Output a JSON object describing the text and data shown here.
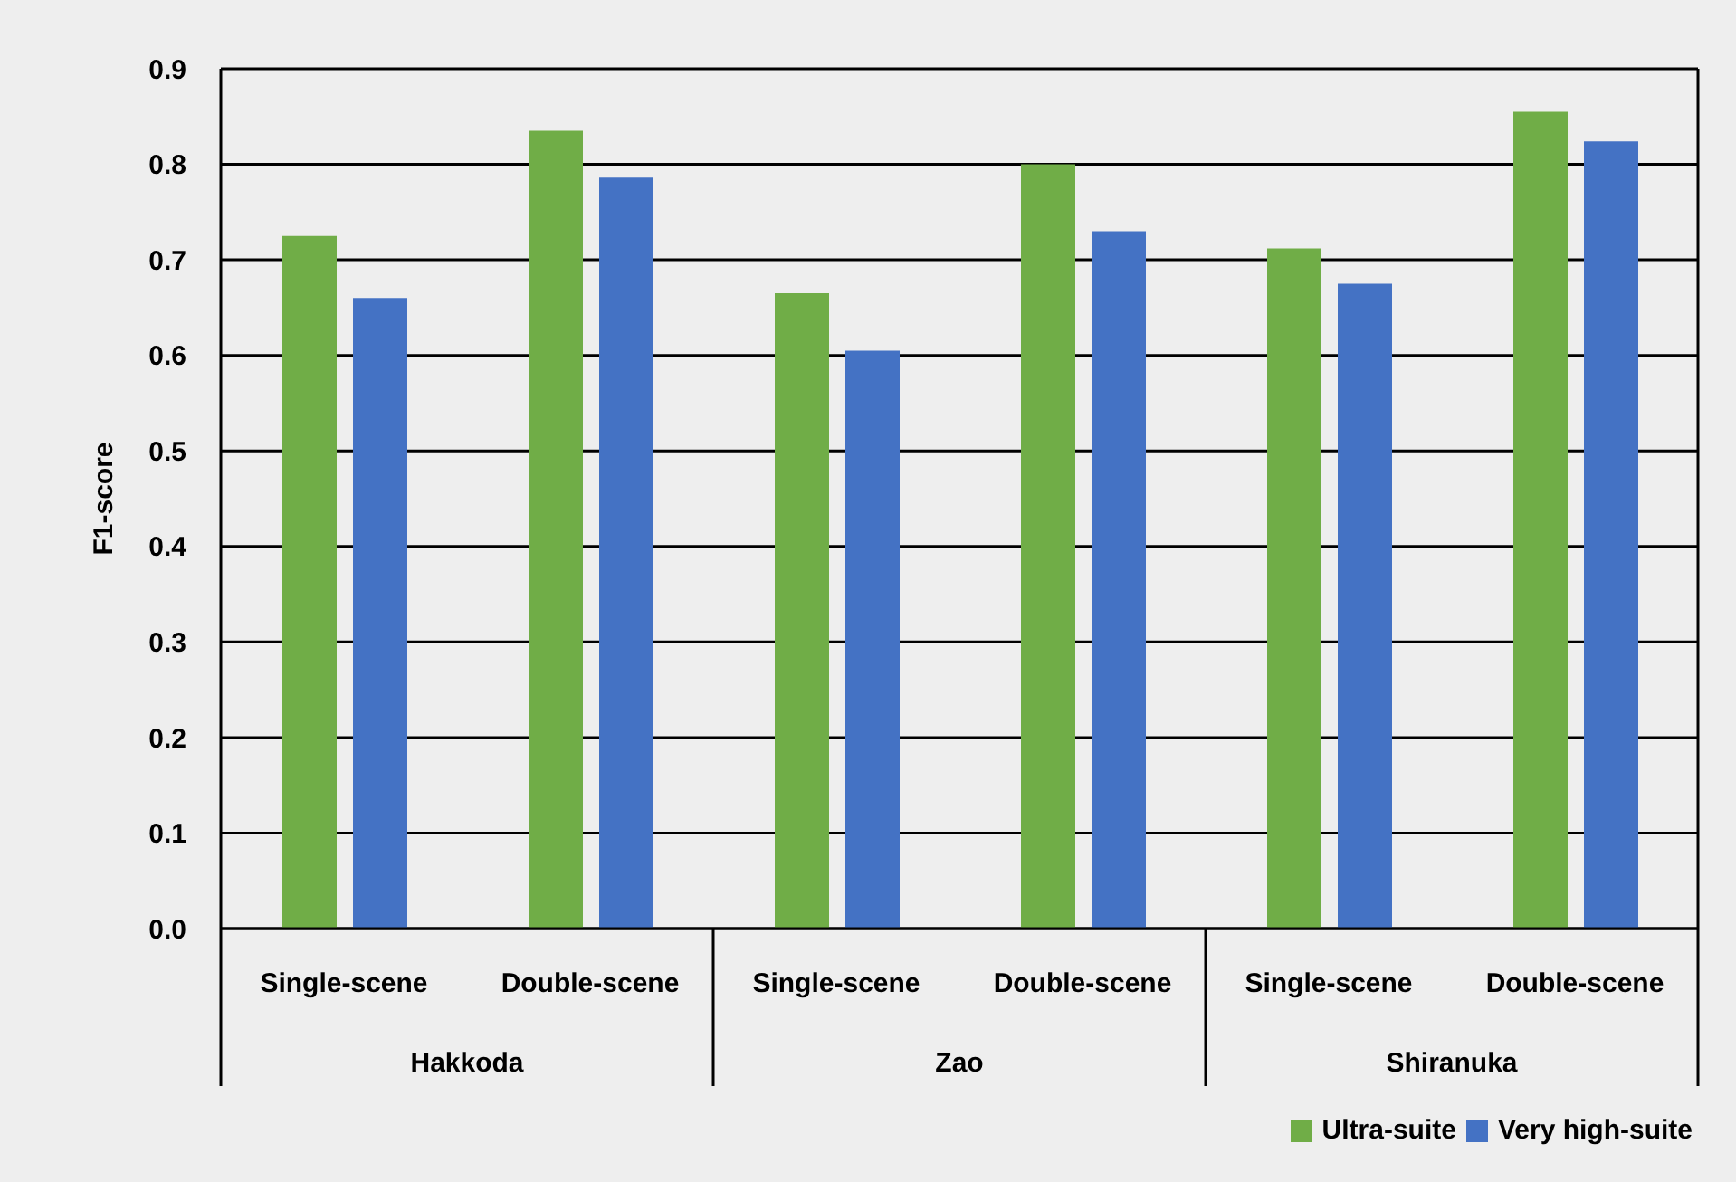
{
  "chart_data": {
    "type": "bar",
    "ylabel": "F1-score",
    "categories": [
      "Single-scene",
      "Double-scene",
      "Single-scene",
      "Double-scene",
      "Single-scene",
      "Double-scene"
    ],
    "annotations": [
      "Hakkoda",
      "Zao",
      "Shiranuka"
    ],
    "series": [
      {
        "name": "Ultra-suite",
        "color": "#70ad47",
        "values": [
          0.725,
          0.835,
          0.665,
          0.8,
          0.712,
          0.855
        ]
      },
      {
        "name": "Very high-suite",
        "color": "#4472c4",
        "values": [
          0.66,
          0.786,
          0.605,
          0.73,
          0.675,
          0.824
        ]
      }
    ],
    "ylim": [
      0,
      0.9
    ],
    "yticks": [
      {
        "value": 0,
        "label": "0.0"
      },
      0.1,
      0.2,
      0.3,
      0.4,
      0.5,
      0.6,
      0.7,
      0.8,
      0.9
    ],
    "grid": "y",
    "legend": "bottom right"
  }
}
